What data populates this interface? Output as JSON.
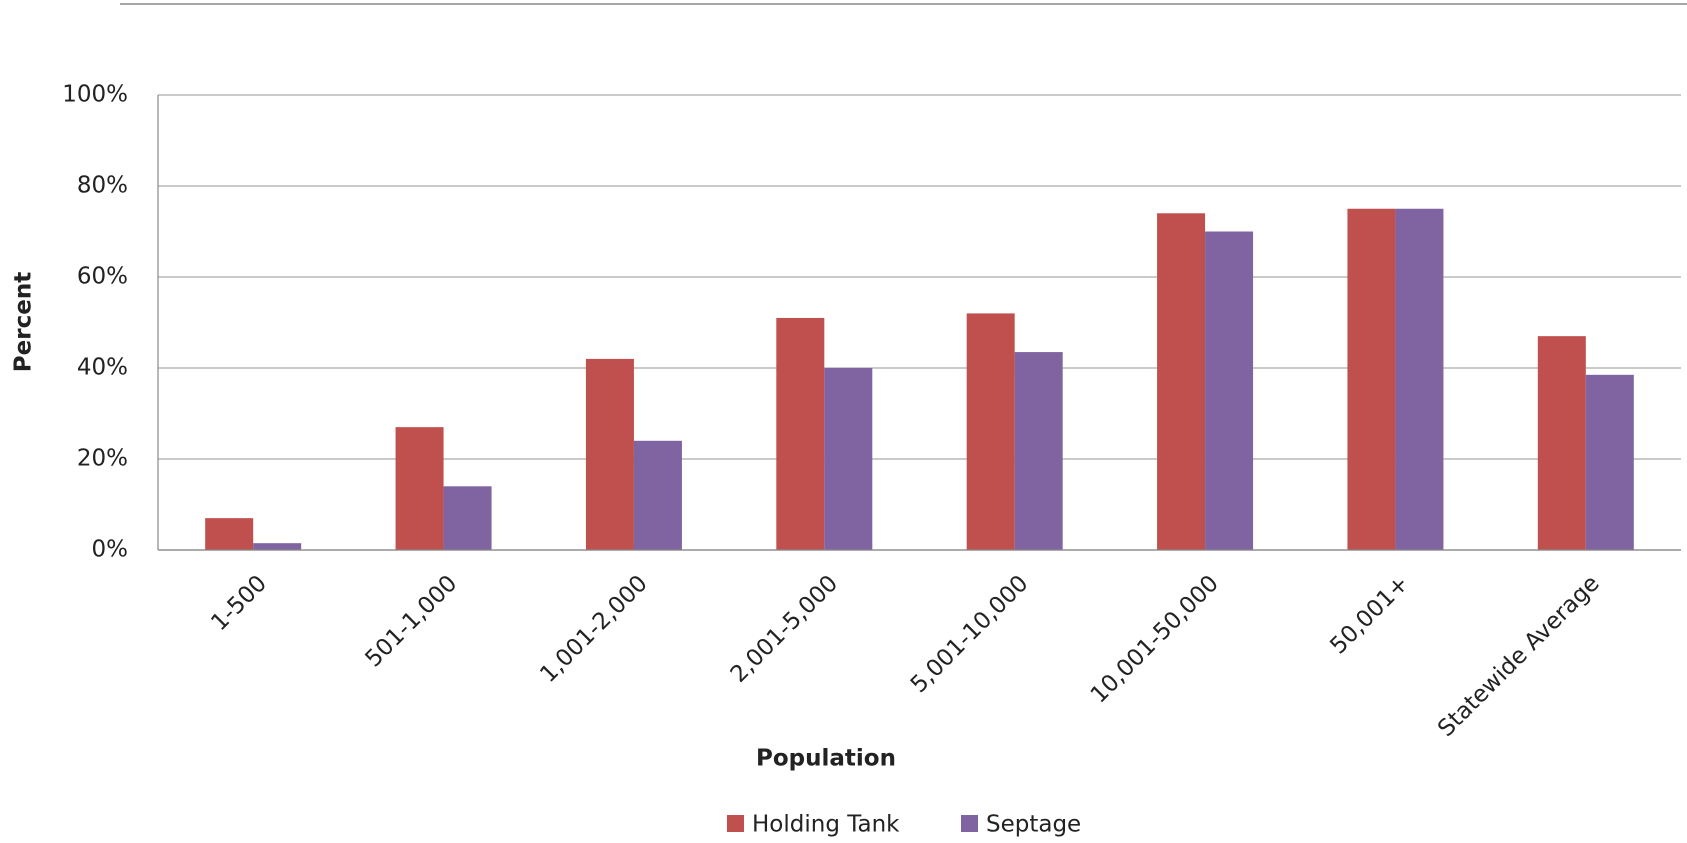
{
  "chart_data": {
    "type": "bar",
    "x_label": "Population",
    "y_label": "Percent",
    "categories": [
      "1-500",
      "501-1,000",
      "1,001-2,000",
      "2,001-5,000",
      "5,001-10,000",
      "10,001-50,000",
      "50,001+",
      "Statewide Average"
    ],
    "series": [
      {
        "name": "Holding Tank",
        "color": "#c0504d",
        "values": [
          7,
          27,
          42,
          51,
          52,
          74,
          75,
          47
        ]
      },
      {
        "name": "Septage",
        "color": "#8064a2",
        "values": [
          1.5,
          14,
          24,
          40,
          43.5,
          70,
          75,
          38.5
        ]
      }
    ],
    "ylim": [
      0,
      100
    ],
    "yticks": [
      {
        "value": 0,
        "label": "0%"
      },
      {
        "value": 20,
        "label": "20%"
      },
      {
        "value": 40,
        "label": "40%"
      },
      {
        "value": 60,
        "label": "60%"
      },
      {
        "value": 80,
        "label": "80%"
      },
      {
        "value": 100,
        "label": "100%"
      }
    ],
    "grid": true,
    "legend": "bottom"
  }
}
